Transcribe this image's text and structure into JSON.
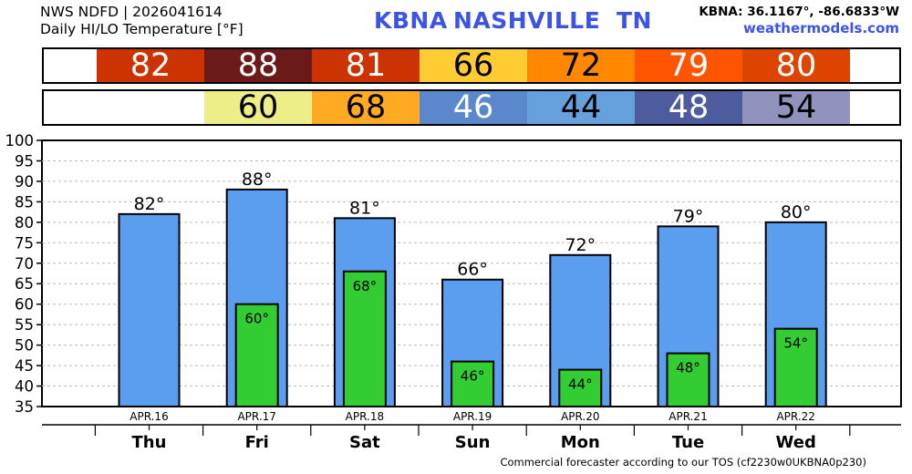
{
  "header": {
    "line1": "NWS NDFD | 2026041614",
    "line2": "Daily HI/LO Temperature [°F]",
    "station_id": "KBNA",
    "station_city": "NASHVILLE",
    "station_state": "TN",
    "coords": "KBNA: 36.1167°, -86.6833°W",
    "site": "weathermodels.com"
  },
  "footer": "Commercial forecaster according to our TOS (cf2230w0UKBNA0p230)",
  "colors": {
    "hi_bar": "#5b9ef0",
    "lo_bar": "#33cc33",
    "hi_cells": [
      "#cc3300",
      "#6b1a1a",
      "#cc3300",
      "#ffcc33",
      "#ff8800",
      "#ff5500",
      "#dd4400"
    ],
    "lo_cells": [
      null,
      "#eeee88",
      "#ffaa22",
      "#5b88cc",
      "#66a0dd",
      "#4d5c9e",
      "#9292bf"
    ],
    "hi_text": [
      "#ffffff",
      "#ffffff",
      "#ffffff",
      "#000000",
      "#000000",
      "#ffffff",
      "#ffffff"
    ],
    "lo_text": [
      null,
      "#000000",
      "#000000",
      "#ffffff",
      "#000000",
      "#ffffff",
      "#000000"
    ]
  },
  "chart_data": {
    "type": "bar",
    "categories": [
      "APR.16",
      "APR.17",
      "APR.18",
      "APR.19",
      "APR.20",
      "APR.21",
      "APR.22"
    ],
    "days": [
      "Thu",
      "Fri",
      "Sat",
      "Sun",
      "Mon",
      "Tue",
      "Wed"
    ],
    "series": [
      {
        "values": [
          82,
          88,
          81,
          66,
          72,
          79,
          80
        ]
      },
      {
        "values": [
          null,
          60,
          68,
          46,
          44,
          48,
          54
        ]
      }
    ],
    "ylim": [
      35,
      100
    ],
    "yticks": [
      35,
      40,
      45,
      50,
      55,
      60,
      65,
      70,
      75,
      80,
      85,
      90,
      95,
      100
    ],
    "grid": true,
    "degree_symbol": "°"
  }
}
